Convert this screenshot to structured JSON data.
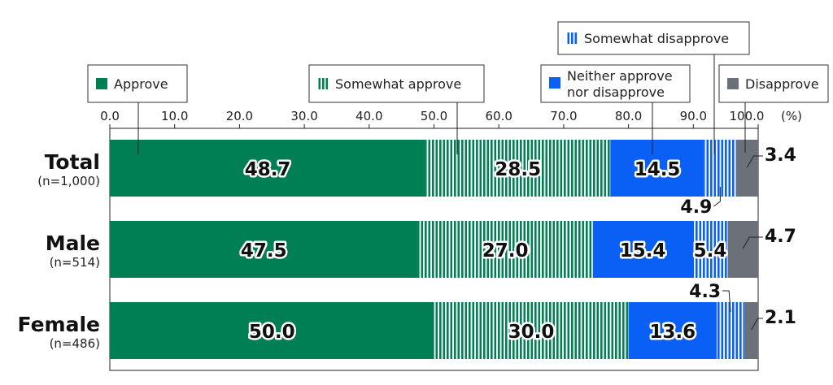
{
  "chart_data": {
    "type": "bar",
    "stacked": true,
    "orientation": "horizontal",
    "unit_label": "(%)",
    "xlim": [
      0,
      100
    ],
    "x_ticks": [
      "0.0",
      "10.0",
      "20.0",
      "30.0",
      "40.0",
      "50.0",
      "60.0",
      "70.0",
      "80.0",
      "90.0",
      "100.0"
    ],
    "categories": [
      {
        "name": "Total",
        "n_label": "(n=1,000)"
      },
      {
        "name": "Male",
        "n_label": "(n=514)"
      },
      {
        "name": "Female",
        "n_label": "(n=486)"
      }
    ],
    "series": [
      {
        "name": "Approve",
        "color": "#007e54",
        "pattern": "solid",
        "values": [
          48.7,
          47.5,
          50.0
        ],
        "labels": [
          "48.7",
          "47.5",
          "50.0"
        ]
      },
      {
        "name": "Somewhat approve",
        "color": "#007e54",
        "pattern": "vertical-stripes",
        "values": [
          28.5,
          27.0,
          30.0
        ],
        "labels": [
          "28.5",
          "27.0",
          "30.0"
        ]
      },
      {
        "name": "Neither approve nor disapprove",
        "legend_lines": [
          "Neither approve",
          "nor disapprove"
        ],
        "color": "#0a5ff5",
        "pattern": "solid",
        "values": [
          14.5,
          15.4,
          13.6
        ],
        "labels": [
          "14.5",
          "15.4",
          "13.6"
        ]
      },
      {
        "name": "Somewhat disapprove",
        "color": "#0a5ff5",
        "pattern": "vertical-stripes",
        "values": [
          4.9,
          5.4,
          4.3
        ],
        "labels": [
          "4.9",
          "5.4",
          "4.3"
        ]
      },
      {
        "name": "Disapprove",
        "color": "#6b7178",
        "pattern": "solid",
        "values": [
          3.4,
          4.7,
          2.1
        ],
        "labels": [
          "3.4",
          "4.7",
          "2.1"
        ]
      }
    ],
    "grid": false
  }
}
